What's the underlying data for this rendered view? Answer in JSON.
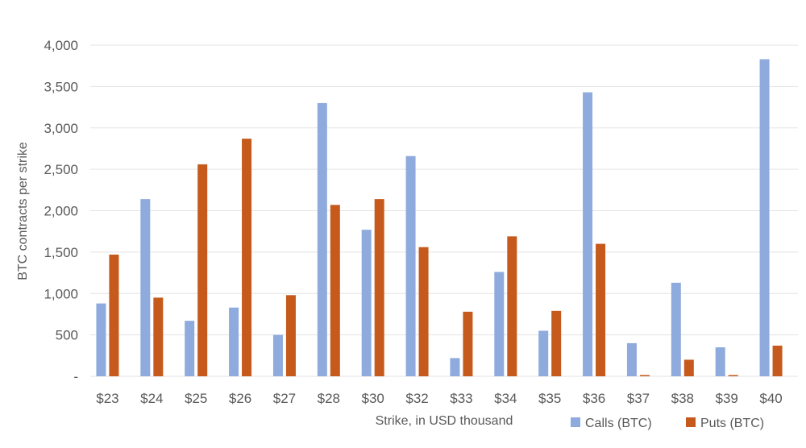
{
  "chart_data": {
    "type": "bar",
    "title": "",
    "xlabel": "Strike, in USD thousand",
    "ylabel": "BTC contracts per strike",
    "ylim": [
      0,
      4000
    ],
    "yticks": [
      0,
      500,
      1000,
      1500,
      2000,
      2500,
      3000,
      3500,
      4000
    ],
    "ytick_labels": [
      "-",
      "500",
      "1,000",
      "1,500",
      "2,000",
      "2,500",
      "3,000",
      "3,500",
      "4,000"
    ],
    "grid": true,
    "legend_position": "bottom-right",
    "categories": [
      "$23",
      "$24",
      "$25",
      "$26",
      "$27",
      "$28",
      "$30",
      "$32",
      "$33",
      "$34",
      "$35",
      "$36",
      "$37",
      "$38",
      "$39",
      "$40"
    ],
    "series": [
      {
        "name": "Calls (BTC)",
        "color": "#8faadc",
        "values": [
          880,
          2140,
          670,
          830,
          500,
          3300,
          1770,
          2660,
          220,
          1260,
          550,
          3430,
          400,
          1130,
          350,
          3830
        ]
      },
      {
        "name": "Puts (BTC)",
        "color": "#c55a1c",
        "values": [
          1470,
          950,
          2560,
          2870,
          980,
          2070,
          2140,
          1560,
          780,
          1690,
          790,
          1600,
          15,
          200,
          15,
          370
        ]
      }
    ]
  }
}
